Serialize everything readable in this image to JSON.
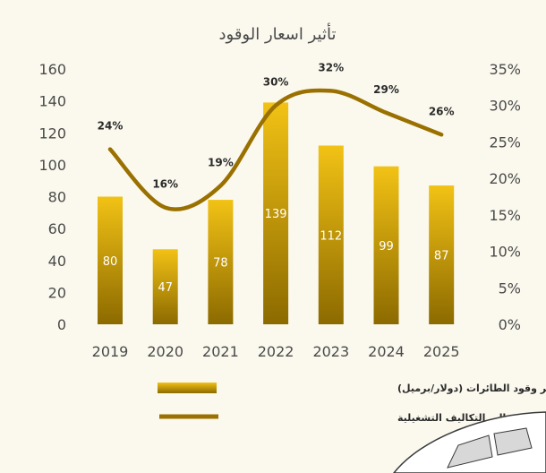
{
  "chart_data": {
    "type": "bar",
    "title": "تأثير اسعار الوقود",
    "categories": [
      "2019",
      "2020",
      "2021",
      "2022",
      "2023",
      "2024",
      "2025"
    ],
    "series": [
      {
        "name": "متوسط سعر وقود الطائرات (دولار/برميل)",
        "type": "bar",
        "axis": "left",
        "values": [
          80,
          47,
          78,
          139,
          112,
          99,
          87
        ],
        "labels": [
          "80",
          "47",
          "78",
          "139",
          "112",
          "99",
          "87"
        ]
      },
      {
        "name": "نسبة الوقود من إجمالي التكاليف التشغيلية",
        "type": "line",
        "axis": "right",
        "values": [
          24,
          16,
          19,
          30,
          32,
          29,
          26
        ],
        "labels": [
          "24%",
          "16%",
          "19%",
          "30%",
          "32%",
          "29%",
          "26%"
        ]
      }
    ],
    "y_left": {
      "ylim": [
        0,
        160
      ],
      "ticks": [
        "0",
        "20",
        "40",
        "60",
        "80",
        "100",
        "120",
        "140",
        "160"
      ]
    },
    "y_right": {
      "ylim": [
        0,
        35
      ],
      "ticks": [
        "0%",
        "5%",
        "10%",
        "15%",
        "20%",
        "25%",
        "30%",
        "35%"
      ]
    },
    "grid": false,
    "legend_position": "bottom-right",
    "colors": {
      "bar_top": "#f2c215",
      "bar_bottom": "#8c6a00",
      "line": "#9a7000",
      "text": "#4a4a4a",
      "background": "#fbf9ee"
    }
  }
}
